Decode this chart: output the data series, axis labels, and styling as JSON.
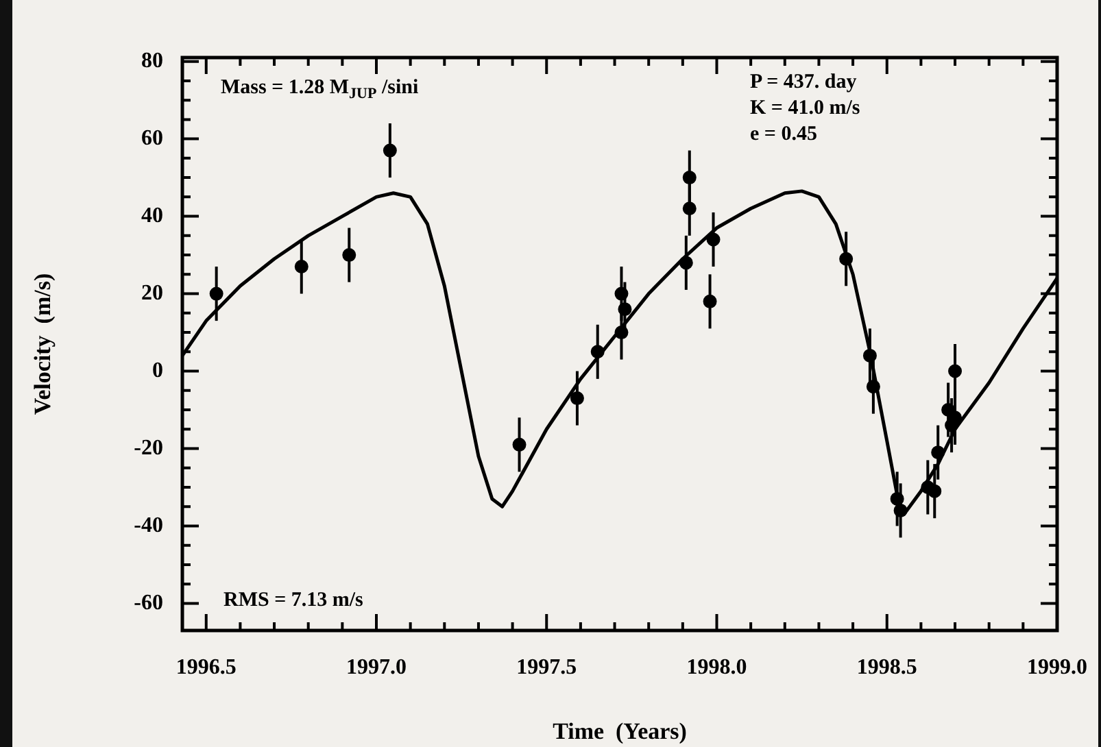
{
  "chart_data": {
    "type": "scatter",
    "xlabel": "Time  (Years)",
    "ylabel": "Velocity  (m/s)",
    "annotations": [
      "Mass = 1.28 M$_{JUP}$ /sini",
      "P = 437. day",
      "K = 41.0 m/s",
      "e = 0.45",
      "RMS = 7.13 m/s"
    ],
    "xlim": [
      1996.43,
      1999.0
    ],
    "ylim": [
      -67,
      81
    ],
    "xticks": [
      {
        "value": 1996.5,
        "label": "1996.5"
      },
      {
        "value": 1996.6,
        "label": null
      },
      {
        "value": 1996.7,
        "label": null
      },
      {
        "value": 1996.8,
        "label": null
      },
      {
        "value": 1996.9,
        "label": null
      },
      {
        "value": 1997.0,
        "label": "1997.0"
      },
      {
        "value": 1997.1,
        "label": null
      },
      {
        "value": 1997.2,
        "label": null
      },
      {
        "value": 1997.3,
        "label": null
      },
      {
        "value": 1997.4,
        "label": null
      },
      {
        "value": 1997.5,
        "label": "1997.5"
      },
      {
        "value": 1997.6,
        "label": null
      },
      {
        "value": 1997.7,
        "label": null
      },
      {
        "value": 1997.8,
        "label": null
      },
      {
        "value": 1997.9,
        "label": null
      },
      {
        "value": 1998.0,
        "label": "1998.0"
      },
      {
        "value": 1998.1,
        "label": null
      },
      {
        "value": 1998.2,
        "label": null
      },
      {
        "value": 1998.3,
        "label": null
      },
      {
        "value": 1998.4,
        "label": null
      },
      {
        "value": 1998.5,
        "label": "1998.5"
      },
      {
        "value": 1998.6,
        "label": null
      },
      {
        "value": 1998.7,
        "label": null
      },
      {
        "value": 1998.8,
        "label": null
      },
      {
        "value": 1998.9,
        "label": null
      },
      {
        "value": 1999.0,
        "label": "1999.0"
      }
    ],
    "yticks": [
      -60,
      {
        "value": -55,
        "label": null
      },
      {
        "value": -50,
        "label": null
      },
      {
        "value": -45,
        "label": null
      },
      -40,
      {
        "value": -35,
        "label": null
      },
      {
        "value": -30,
        "label": null
      },
      {
        "value": -25,
        "label": null
      },
      -20,
      {
        "value": -15,
        "label": null
      },
      {
        "value": -10,
        "label": null
      },
      {
        "value": -5,
        "label": null
      },
      0,
      {
        "value": 5,
        "label": null
      },
      {
        "value": 10,
        "label": null
      },
      {
        "value": 15,
        "label": null
      },
      20,
      {
        "value": 25,
        "label": null
      },
      {
        "value": 30,
        "label": null
      },
      {
        "value": 35,
        "label": null
      },
      40,
      {
        "value": 45,
        "label": null
      },
      {
        "value": 50,
        "label": null
      },
      {
        "value": 55,
        "label": null
      },
      60,
      {
        "value": 65,
        "label": null
      },
      {
        "value": 70,
        "label": null
      },
      {
        "value": 75,
        "label": null
      },
      80
    ],
    "grid": false,
    "legend": false,
    "series": [
      {
        "marker": "circle",
        "color": "#000000",
        "x": [
          1996.53,
          1996.78,
          1996.92,
          1997.04,
          1997.42,
          1997.59,
          1997.65,
          1997.72,
          1997.72,
          1997.73,
          1997.91,
          1997.92,
          1997.92,
          1997.98,
          1997.99,
          1998.38,
          1998.45,
          1998.46,
          1998.53,
          1998.54,
          1998.62,
          1998.64,
          1998.65,
          1998.68,
          1998.69,
          1998.7,
          1998.7
        ],
        "values": [
          20,
          27,
          30,
          57,
          -19,
          -7,
          5,
          10,
          20,
          16,
          28,
          42,
          50,
          18,
          34,
          29,
          4,
          -4,
          -33,
          -36,
          -30,
          -31,
          -21,
          -10,
          -14,
          -12,
          0
        ],
        "errors": [
          7,
          7,
          7,
          7,
          7,
          7,
          7,
          7,
          7,
          7,
          7,
          7,
          7,
          7,
          7,
          7,
          7,
          7,
          7,
          7,
          7,
          7,
          7,
          7,
          7,
          7,
          7
        ]
      },
      {
        "type": "line",
        "color": "#000000",
        "x": [
          1996.43,
          1996.5,
          1996.6,
          1996.7,
          1996.8,
          1996.9,
          1997.0,
          1997.05,
          1997.1,
          1997.15,
          1997.2,
          1997.25,
          1997.3,
          1997.34,
          1997.37,
          1997.4,
          1997.45,
          1997.5,
          1997.6,
          1997.7,
          1997.8,
          1997.9,
          1998.0,
          1998.1,
          1998.2,
          1998.25,
          1998.3,
          1998.35,
          1998.4,
          1998.45,
          1998.5,
          1998.53,
          1998.55,
          1998.6,
          1998.65,
          1998.7,
          1998.8,
          1998.9,
          1999.0
        ],
        "values": [
          4,
          13,
          22,
          29,
          35,
          40,
          45,
          46,
          45,
          38,
          22,
          0,
          -22,
          -33,
          -35,
          -31,
          -23,
          -15,
          -2,
          9,
          20,
          29,
          37,
          42,
          46,
          46.5,
          45,
          38,
          25,
          5,
          -18,
          -32,
          -37,
          -31,
          -24,
          -15,
          -3,
          11,
          24
        ]
      }
    ]
  }
}
